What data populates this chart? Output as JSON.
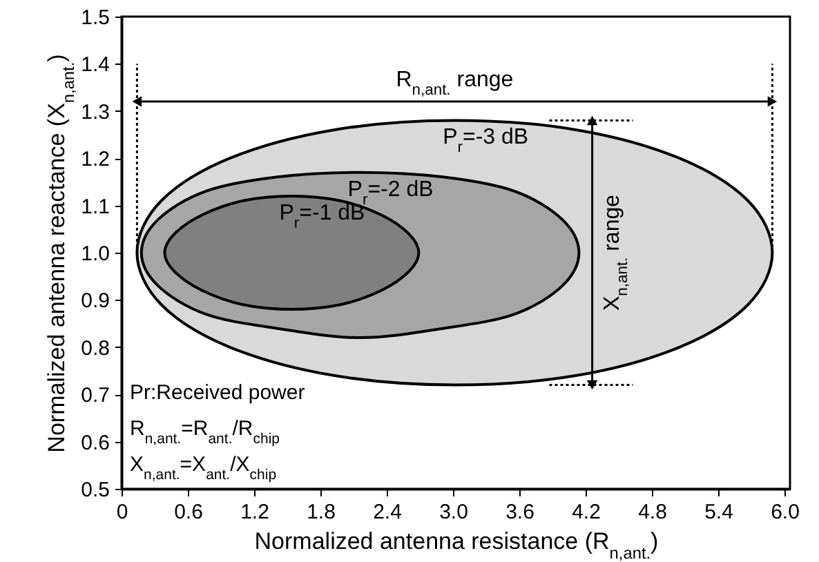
{
  "chart_data": {
    "type": "area",
    "xlabel": "Normalized antenna resistance (R$_{n,ant.}$)",
    "ylabel": "Normalized antenna reactance (X$_{n,ant.}$)",
    "xlim": [
      0,
      6.05
    ],
    "ylim": [
      0.5,
      1.5
    ],
    "xticks": [
      0,
      0.6,
      1.2,
      1.8,
      2.4,
      {
        "value": 3,
        "label": "3.0"
      },
      3.6,
      4.2,
      4.8,
      5.4,
      {
        "value": 6,
        "label": "6.0"
      }
    ],
    "yticks": [
      0.5,
      0.6,
      0.7,
      0.8,
      0.9,
      {
        "value": 1,
        "label": "1.0"
      },
      1.1,
      1.2,
      1.3,
      1.4,
      1.5
    ],
    "grid": false,
    "legend": false,
    "line_style": "solid",
    "series": [
      {
        "name": "P$_{r}$=-3 dB",
        "color": "#d9d9d9",
        "x": [
          5.89,
          5.67,
          5.05,
          4.12,
          3.02,
          1.92,
          0.98,
          0.36,
          0.14,
          0.36,
          0.98,
          1.92,
          3.02,
          4.12,
          5.05,
          5.67
        ],
        "values": [
          1.0,
          1.11,
          1.2,
          1.26,
          1.28,
          1.26,
          1.2,
          1.11,
          1.0,
          0.89,
          0.8,
          0.74,
          0.72,
          0.74,
          0.8,
          0.89
        ]
      },
      {
        "name": "P$_{r}$=-2 dB",
        "color": "#a6a6a6",
        "x": [
          4.14,
          3.99,
          3.56,
          2.92,
          2.16,
          1.4,
          0.76,
          0.33,
          0.18,
          0.33,
          0.76,
          1.4,
          2.16,
          2.92,
          3.56,
          3.99
        ],
        "values": [
          1.0,
          1.07,
          1.13,
          1.16,
          1.17,
          1.16,
          1.13,
          1.07,
          1.0,
          0.93,
          0.87,
          0.84,
          0.82,
          0.84,
          0.87,
          0.93
        ]
      },
      {
        "name": "P$_{r}$=-1 dB",
        "color": "#808080",
        "x": [
          2.69,
          2.6,
          2.35,
          1.98,
          1.54,
          1.1,
          0.73,
          0.48,
          0.39,
          0.48,
          0.73,
          1.1,
          1.54,
          1.98,
          2.35,
          2.6
        ],
        "values": [
          1.0,
          1.04,
          1.08,
          1.11,
          1.12,
          1.11,
          1.08,
          1.04,
          1.0,
          0.96,
          0.92,
          0.89,
          0.88,
          0.89,
          0.92,
          0.96
        ]
      }
    ],
    "ref_lines": [
      {
        "axis": "x",
        "value": 0.14,
        "line_style": "dotted"
      },
      {
        "axis": "x",
        "value": 5.89,
        "line_style": "dotted"
      },
      {
        "axis": "y",
        "value": 0.72,
        "line_style": "dotted"
      },
      {
        "axis": "y",
        "value": 1.28,
        "line_style": "dotted"
      },
      {
        "axis": "y",
        "value": 1.32,
        "label": "R$_{n,ant.}$ range",
        "line_style": "solid"
      },
      {
        "axis": "x",
        "value": 4.26,
        "label": "X$_{n,ant.}$ range",
        "line_style": "solid"
      }
    ],
    "annotations": [
      "Pr:Received power",
      "R$_{n,ant.}$=R$_{ant.}$/R$_{chip}$",
      "X$_{n,ant.}$=X$_{ant.}$/X$_{chip}$"
    ]
  }
}
